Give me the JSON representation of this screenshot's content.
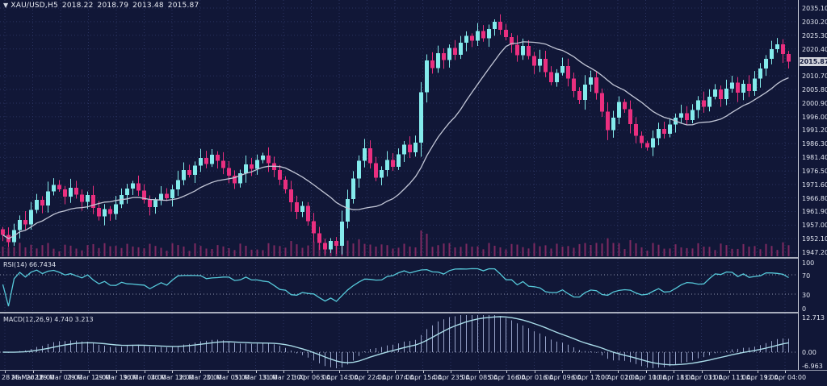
{
  "window": {
    "symbol_period": "XAU/USD,H5",
    "ohlc": {
      "open": "2018.22",
      "high": "2018.79",
      "low": "2013.48",
      "close": "2015.87"
    }
  },
  "colors": {
    "background": "#111737",
    "grid": "#2a3360",
    "bull": "#84ebec",
    "bear": "#ea2f7f",
    "ma_line": "#c2c6d6",
    "volume": "#7e2a62",
    "rsi_line": "#56c9da",
    "macd_line": "#a9dbe8",
    "macd_hist": "#97a3c9",
    "separator": "#a9aebd",
    "axis_text": "#dfe3ee",
    "price_tag_bg": "#d2d4dc"
  },
  "price_axis_labels": [
    "2035.10",
    "2030.20",
    "2025.30",
    "2020.40",
    "2010.70",
    "2005.80",
    "2000.90",
    "1996.00",
    "1991.20",
    "1986.30",
    "1981.40",
    "1976.50",
    "1971.60",
    "1966.80",
    "1961.90",
    "1957.00",
    "1952.10",
    "1947.20"
  ],
  "current_price": "2015.87",
  "rsi_panel": {
    "label": "RSI(14) 66.7434",
    "axis_labels": [
      "100",
      "70",
      "30",
      "0"
    ],
    "axis_values": [
      100,
      70,
      30,
      0
    ],
    "level_lines": [
      70,
      30
    ]
  },
  "macd_panel": {
    "label": "MACD(12,26,9) 4.740 3.213",
    "axis_labels": [
      "12.713",
      "0.00",
      "-6.963"
    ],
    "axis_values": [
      12.713,
      0,
      -6.963
    ]
  },
  "time_labels": [
    "28 Mar 2023",
    "28 Mar 18:00",
    "29 Mar 03:00",
    "29 Mar 11:00",
    "29 Mar 19:00",
    "30 Mar 04:00",
    "30 Mar 12:00",
    "30 Mar 20:00",
    "31 Mar 05:00",
    "31 Mar 13:00",
    "31 Mar 21:00",
    "3 Apr 06:00",
    "3 Apr 14:00",
    "3 Apr 22:00",
    "4 Apr 07:00",
    "4 Apr 15:00",
    "4 Apr 23:00",
    "5 Apr 08:00",
    "5 Apr 16:00",
    "6 Apr 01:00",
    "6 Apr 09:00",
    "6 Apr 17:00",
    "10 Apr 02:00",
    "10 Apr 10:00",
    "10 Apr 18:00",
    "11 Apr 03:00",
    "11 Apr 11:00",
    "11 Apr 19:00",
    "12 Apr 04:00"
  ],
  "chart_data": {
    "type": "candlestick",
    "symbol": "XAU/USD",
    "timeframe": "H5",
    "title": "XAU/USD,H5 2018.22 2018.79 2013.48 2015.87",
    "price_range": {
      "top": 2038.0,
      "bottom": 1945.5
    },
    "current_close": 2015.87,
    "has_volume_histogram": true,
    "moving_average_period": 16,
    "indicators": [
      {
        "name": "RSI",
        "period": 14,
        "last_value": 66.7434,
        "range": [
          0,
          100
        ],
        "levels": [
          70,
          30
        ]
      },
      {
        "name": "MACD",
        "params": [
          12,
          26,
          9
        ],
        "last_main": 4.74,
        "last_signal": 3.213,
        "axis": [
          12.713,
          0.0,
          -6.963
        ]
      }
    ],
    "first_open": 1955.5,
    "closes": [
      1953.5,
      1950.8,
      1955.2,
      1958.9,
      1957.3,
      1962.4,
      1966.1,
      1964.0,
      1969.2,
      1971.4,
      1969.8,
      1967.2,
      1970.5,
      1968.0,
      1965.4,
      1967.9,
      1963.2,
      1960.1,
      1962.8,
      1961.0,
      1964.5,
      1967.8,
      1970.2,
      1972.0,
      1969.4,
      1966.1,
      1963.5,
      1965.9,
      1968.3,
      1966.7,
      1969.9,
      1973.2,
      1976.8,
      1975.1,
      1978.4,
      1981.2,
      1979.0,
      1982.3,
      1980.1,
      1977.5,
      1974.8,
      1972.1,
      1975.6,
      1978.9,
      1977.2,
      1980.5,
      1982.0,
      1979.3,
      1976.8,
      1973.4,
      1969.8,
      1965.2,
      1961.7,
      1963.9,
      1958.4,
      1954.1,
      1950.6,
      1948.2,
      1951.3,
      1949.5,
      1958.2,
      1966.4,
      1973.8,
      1980.2,
      1984.6,
      1979.3,
      1974.1,
      1976.8,
      1980.4,
      1978.0,
      1982.5,
      1985.9,
      1983.2,
      1986.7,
      2004.8,
      2016.2,
      2013.5,
      2018.9,
      2016.4,
      2020.7,
      2018.3,
      2022.6,
      2025.1,
      2023.4,
      2026.8,
      2024.2,
      2027.5,
      2030.1,
      2027.3,
      2024.6,
      2021.9,
      2018.2,
      2021.4,
      2017.8,
      2014.3,
      2016.9,
      2012.1,
      2008.4,
      2011.7,
      2014.2,
      2009.8,
      2005.3,
      2002.1,
      2007.6,
      2010.2,
      2004.5,
      1997.8,
      1991.2,
      1995.6,
      2001.3,
      1998.7,
      1993.4,
      1989.1,
      1986.5,
      1984.9,
      1988.2,
      1991.6,
      1989.8,
      1993.2,
      1995.7,
      1997.2,
      1994.8,
      1998.4,
      2001.9,
      1999.6,
      2003.2,
      2005.8,
      2002.4,
      2006.1,
      2008.3,
      2004.7,
      2007.9,
      2005.2,
      2009.8,
      2013.4,
      2016.9,
      2020.3,
      2022.1,
      2018.6,
      2015.87
    ]
  }
}
